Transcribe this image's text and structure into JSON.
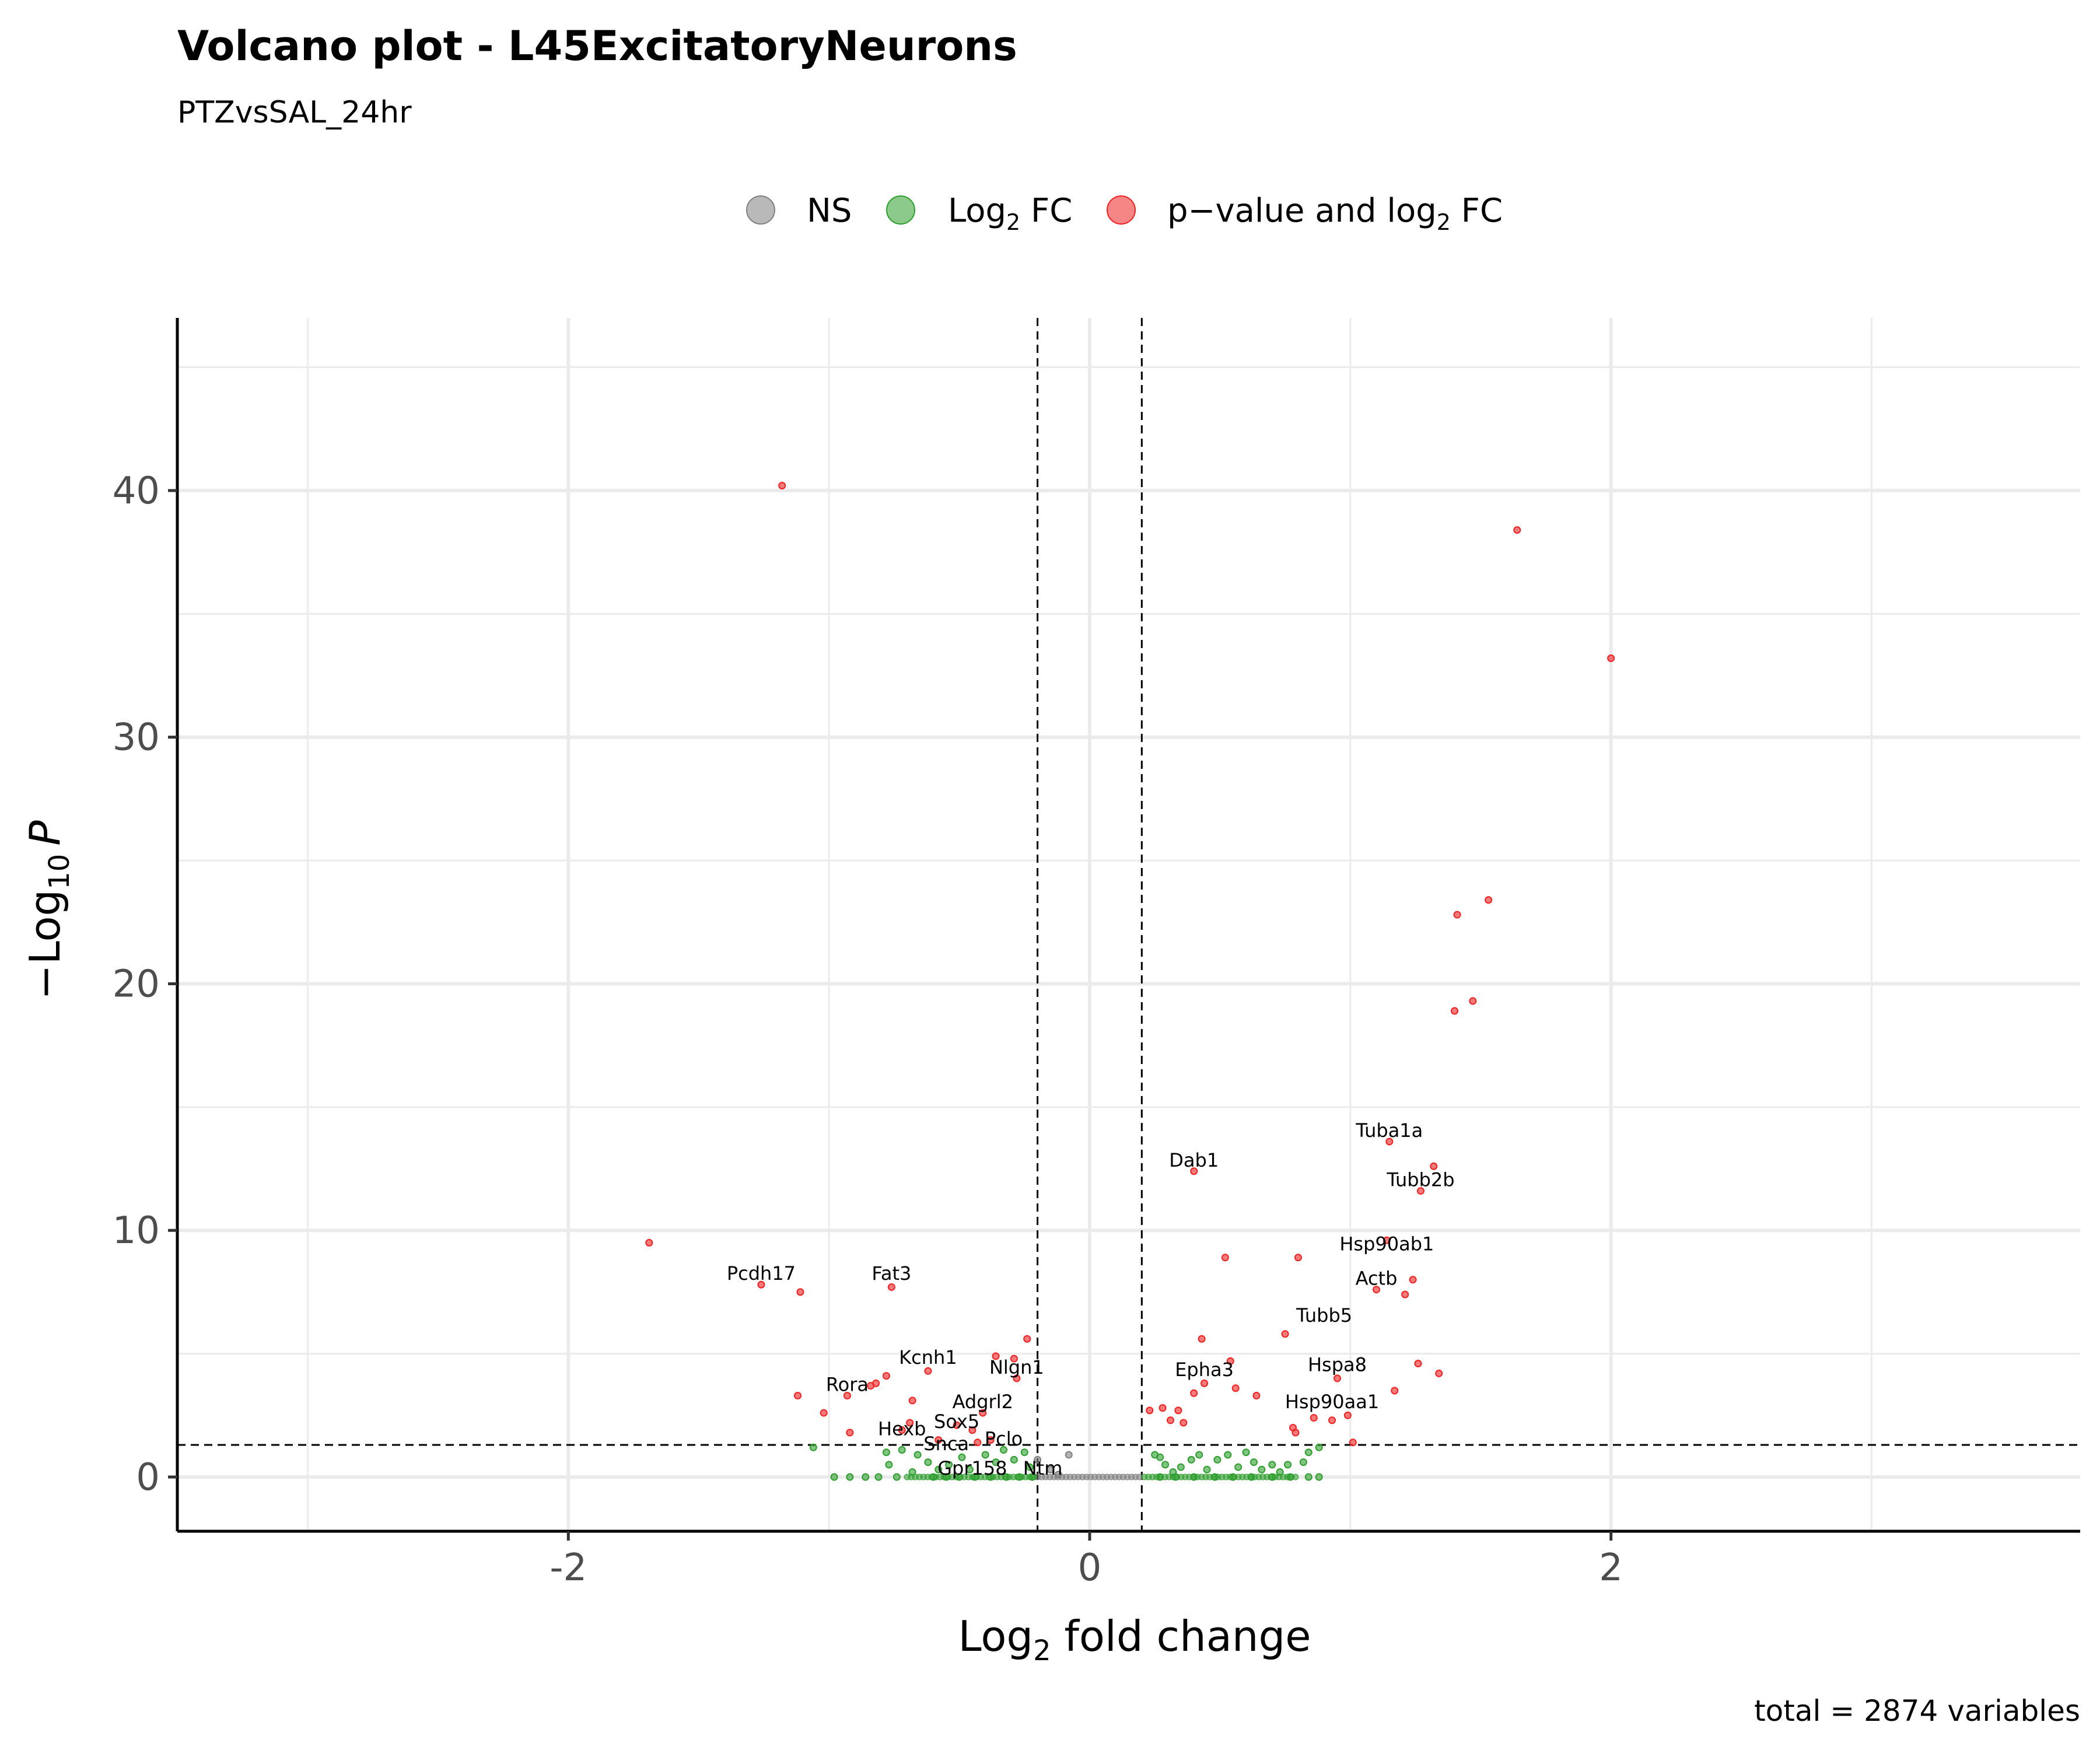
{
  "chart_data": {
    "type": "scatter",
    "title": "Volcano plot - L45ExcitatoryNeurons",
    "subtitle": "PTZvsSAL_24hr",
    "xlabel": {
      "main": "Log",
      "sub": "2",
      "rest": " fold change"
    },
    "ylabel": {
      "prefix": "−Log",
      "sub": "10",
      "var": "P"
    },
    "caption": "total = 2874 variables",
    "xlim": [
      -3.5,
      3.8
    ],
    "ylim": [
      -2.2,
      47
    ],
    "x_ticks": [
      -2,
      0,
      2
    ],
    "y_ticks": [
      0,
      10,
      20,
      30,
      40
    ],
    "x_tick_labels": [
      "-2",
      "0",
      "2"
    ],
    "y_tick_labels": [
      "0",
      "10",
      "20",
      "30",
      "40"
    ],
    "cutoffs": {
      "log2fc": 0.2,
      "pvalue_neglog10": 1.3
    },
    "grid": true,
    "legend_position": "top",
    "legend": [
      {
        "key": "ns",
        "label": "NS",
        "color": "#808080"
      },
      {
        "key": "fc",
        "label": {
          "main": "Log",
          "sub": "2",
          "rest": " FC"
        },
        "color": "#2e9e2e"
      },
      {
        "key": "sig",
        "label": {
          "main": "p−value and log",
          "sub": "2",
          "rest": " FC"
        },
        "color": "#ee2222"
      }
    ],
    "series": [
      {
        "key": "sig",
        "points": [
          [
            -1.18,
            40.2
          ],
          [
            1.64,
            38.4
          ],
          [
            2.0,
            33.2
          ],
          [
            1.53,
            23.4
          ],
          [
            1.41,
            22.8
          ],
          [
            1.47,
            19.3
          ],
          [
            1.4,
            18.9
          ],
          [
            1.15,
            13.6
          ],
          [
            1.32,
            12.6
          ],
          [
            0.4,
            12.4
          ],
          [
            1.27,
            11.6
          ],
          [
            1.14,
            9.6
          ],
          [
            -1.69,
            9.5
          ],
          [
            0.52,
            8.9
          ],
          [
            0.8,
            8.9
          ],
          [
            1.24,
            8.0
          ],
          [
            1.21,
            7.4
          ],
          [
            1.1,
            7.6
          ],
          [
            -1.26,
            7.8
          ],
          [
            -0.76,
            7.7
          ],
          [
            -1.11,
            7.5
          ],
          [
            0.75,
            5.8
          ],
          [
            0.43,
            5.6
          ],
          [
            -0.24,
            5.6
          ],
          [
            -0.36,
            4.9
          ],
          [
            -0.29,
            4.8
          ],
          [
            0.54,
            4.7
          ],
          [
            1.26,
            4.6
          ],
          [
            1.34,
            4.2
          ],
          [
            -0.78,
            4.1
          ],
          [
            -0.62,
            4.3
          ],
          [
            -0.82,
            3.8
          ],
          [
            -0.84,
            3.7
          ],
          [
            -0.28,
            4.0
          ],
          [
            0.44,
            3.8
          ],
          [
            0.95,
            4.0
          ],
          [
            0.56,
            3.6
          ],
          [
            1.17,
            3.5
          ],
          [
            -1.12,
            3.3
          ],
          [
            -0.93,
            3.3
          ],
          [
            -0.68,
            3.1
          ],
          [
            0.64,
            3.3
          ],
          [
            0.4,
            3.4
          ],
          [
            -1.02,
            2.6
          ],
          [
            0.34,
            2.7
          ],
          [
            0.28,
            2.8
          ],
          [
            0.23,
            2.7
          ],
          [
            0.31,
            2.3
          ],
          [
            0.36,
            2.2
          ],
          [
            0.86,
            2.4
          ],
          [
            0.99,
            2.5
          ],
          [
            0.93,
            2.3
          ],
          [
            -0.41,
            2.6
          ],
          [
            -0.69,
            2.2
          ],
          [
            -0.72,
            1.9
          ],
          [
            -0.51,
            2.1
          ],
          [
            -0.92,
            1.8
          ],
          [
            -0.45,
            1.9
          ],
          [
            0.78,
            2.0
          ],
          [
            0.79,
            1.8
          ],
          [
            1.01,
            1.4
          ],
          [
            -0.58,
            1.5
          ],
          [
            -0.43,
            1.4
          ],
          [
            -0.38,
            1.5
          ]
        ]
      },
      {
        "key": "fc",
        "points": [
          [
            -1.06,
            1.2
          ],
          [
            -0.98,
            0.0
          ],
          [
            -0.92,
            0.0
          ],
          [
            -0.86,
            0.0
          ],
          [
            -0.81,
            0.0
          ],
          [
            -0.78,
            1.0
          ],
          [
            -0.74,
            0.0
          ],
          [
            -0.72,
            1.1
          ],
          [
            -0.66,
            0.9
          ],
          [
            -0.62,
            0.6
          ],
          [
            -0.58,
            0.3
          ],
          [
            -0.54,
            0.5
          ],
          [
            -0.49,
            0.8
          ],
          [
            -0.46,
            0.3
          ],
          [
            -0.4,
            0.9
          ],
          [
            -0.36,
            0.6
          ],
          [
            -0.33,
            1.1
          ],
          [
            -0.29,
            0.7
          ],
          [
            -0.25,
            1.0
          ],
          [
            -0.23,
            0.4
          ],
          [
            -0.77,
            0.5
          ],
          [
            -0.68,
            0.2
          ],
          [
            -0.6,
            0.0
          ],
          [
            -0.55,
            0.0
          ],
          [
            -0.5,
            0.0
          ],
          [
            -0.44,
            0.0
          ],
          [
            -0.38,
            0.0
          ],
          [
            -0.32,
            0.0
          ],
          [
            -0.27,
            0.0
          ],
          [
            -0.22,
            0.0
          ],
          [
            0.25,
            0.9
          ],
          [
            0.27,
            0.8
          ],
          [
            0.29,
            0.5
          ],
          [
            0.32,
            0.2
          ],
          [
            0.35,
            0.4
          ],
          [
            0.39,
            0.7
          ],
          [
            0.42,
            0.9
          ],
          [
            0.45,
            0.3
          ],
          [
            0.49,
            0.7
          ],
          [
            0.53,
            0.9
          ],
          [
            0.57,
            0.4
          ],
          [
            0.6,
            1.0
          ],
          [
            0.63,
            0.6
          ],
          [
            0.66,
            0.3
          ],
          [
            0.7,
            0.5
          ],
          [
            0.73,
            0.2
          ],
          [
            0.76,
            0.5
          ],
          [
            0.82,
            0.6
          ],
          [
            0.84,
            1.0
          ],
          [
            0.88,
            1.2
          ],
          [
            0.27,
            0.0
          ],
          [
            0.33,
            0.0
          ],
          [
            0.4,
            0.0
          ],
          [
            0.48,
            0.0
          ],
          [
            0.55,
            0.0
          ],
          [
            0.62,
            0.0
          ],
          [
            0.7,
            0.0
          ],
          [
            0.77,
            0.0
          ],
          [
            0.84,
            0.0
          ],
          [
            0.88,
            0.0
          ]
        ],
        "bands": [
          {
            "from": -0.7,
            "to": -0.21,
            "y": 0
          },
          {
            "from": 0.21,
            "to": 0.8,
            "y": 0
          }
        ]
      },
      {
        "key": "ns",
        "points": [
          [
            -0.2,
            0.7
          ],
          [
            -0.08,
            0.9
          ],
          [
            -0.15,
            0.3
          ],
          [
            -0.12,
            0.1
          ]
        ],
        "bands": [
          {
            "from": -0.2,
            "to": 0.2,
            "y": 0
          }
        ]
      }
    ],
    "annotations": [
      {
        "label": "Tuba1a",
        "x": 1.15,
        "y": 13.6
      },
      {
        "label": "Dab1",
        "x": 0.4,
        "y": 12.4
      },
      {
        "label": "Tubb2b",
        "x": 1.27,
        "y": 11.6
      },
      {
        "label": "Hsp90ab1",
        "x": 1.14,
        "y": 9.0
      },
      {
        "label": "Pcdh17",
        "x": -1.26,
        "y": 7.8
      },
      {
        "label": "Fat3",
        "x": -0.76,
        "y": 7.8
      },
      {
        "label": "Actb",
        "x": 1.1,
        "y": 7.6
      },
      {
        "label": "Tubb5",
        "x": 0.9,
        "y": 6.1
      },
      {
        "label": "Kcnh1",
        "x": -0.62,
        "y": 4.4
      },
      {
        "label": "Nlgn1",
        "x": -0.28,
        "y": 4.0
      },
      {
        "label": "Hspa8",
        "x": 0.95,
        "y": 4.1
      },
      {
        "label": "Epha3",
        "x": 0.44,
        "y": 3.9
      },
      {
        "label": "Rora",
        "x": -0.93,
        "y": 3.3
      },
      {
        "label": "Adgrl2",
        "x": -0.41,
        "y": 2.6
      },
      {
        "label": "Hsp90aa1",
        "x": 0.93,
        "y": 2.6
      },
      {
        "label": "Sox5",
        "x": -0.51,
        "y": 1.8
      },
      {
        "label": "Hexb",
        "x": -0.72,
        "y": 1.5
      },
      {
        "label": "Pclo",
        "x": -0.33,
        "y": 1.1
      },
      {
        "label": "Snca",
        "x": -0.55,
        "y": 0.9
      },
      {
        "label": "Gpr158",
        "x": -0.45,
        "y": -0.1
      },
      {
        "label": "Ntm",
        "x": -0.18,
        "y": -0.1
      }
    ]
  }
}
